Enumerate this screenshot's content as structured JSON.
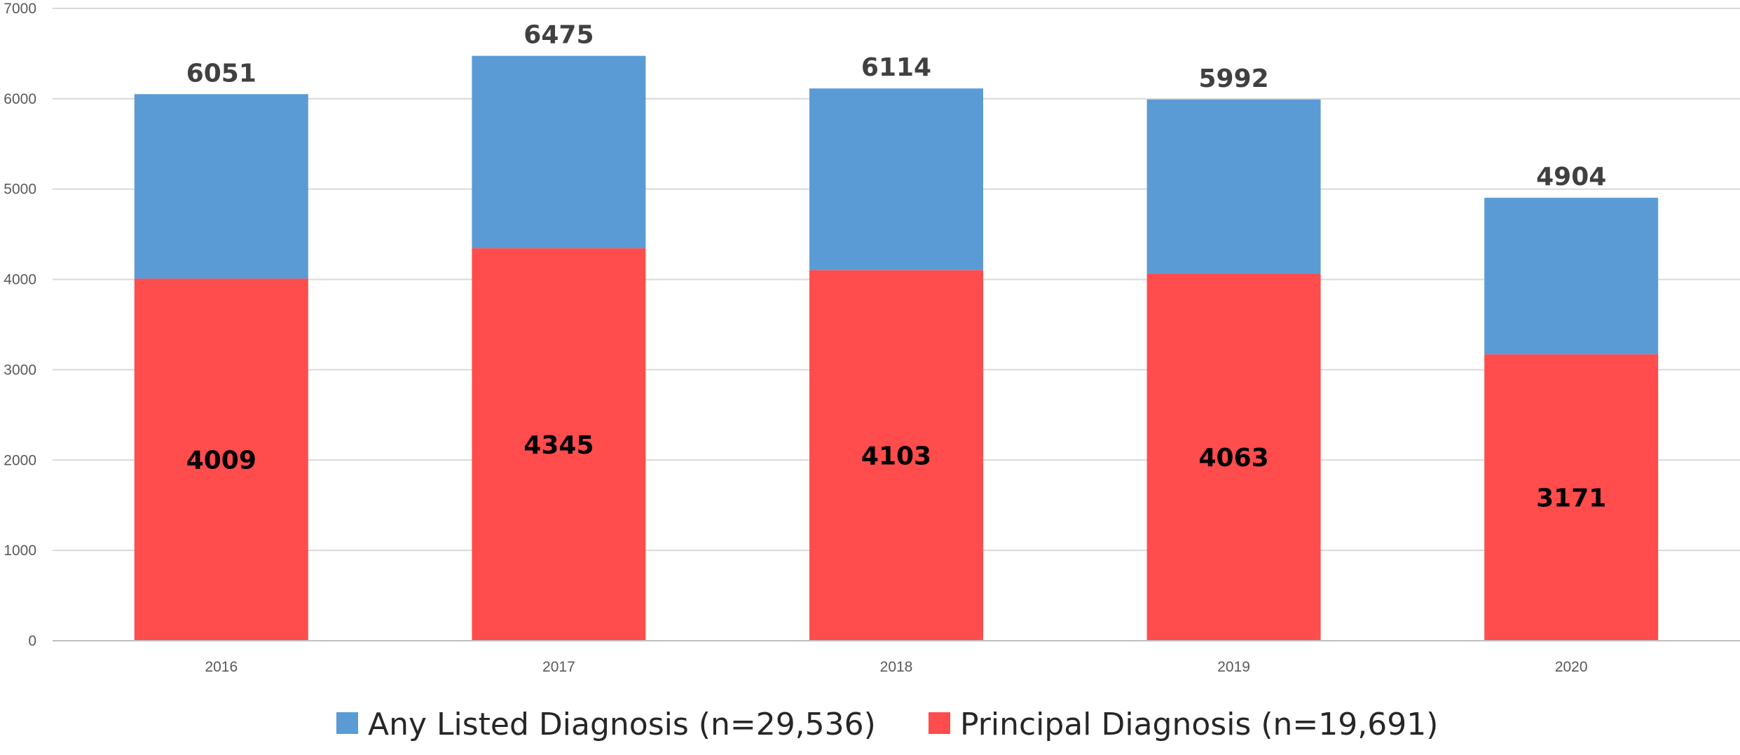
{
  "chart_data": {
    "type": "bar",
    "stacked": true,
    "title": "",
    "xlabel": "",
    "ylabel": "",
    "categories": [
      "2016",
      "2017",
      "2018",
      "2019",
      "2020"
    ],
    "ylim": [
      0,
      7000
    ],
    "yticks": [
      0,
      1000,
      2000,
      3000,
      4000,
      5000,
      6000,
      7000
    ],
    "grid": true,
    "legend_position": "bottom",
    "totals": [
      6051,
      6475,
      6114,
      5992,
      4904
    ],
    "series": [
      {
        "name": "Principal Diagnosis (n=19,691)",
        "color": "#ff4c4c",
        "values": [
          4009,
          4345,
          4103,
          4063,
          3171
        ]
      },
      {
        "name": "Any Listed Diagnosis (n=29,536)",
        "color": "#5b9bd5",
        "values": [
          2042,
          2130,
          2011,
          1929,
          1733
        ]
      }
    ],
    "legend": [
      {
        "label": "Any Listed Diagnosis (n=29,536)",
        "color": "#5b9bd5"
      },
      {
        "label": "Principal Diagnosis (n=19,691)",
        "color": "#ff4c4c"
      }
    ]
  }
}
